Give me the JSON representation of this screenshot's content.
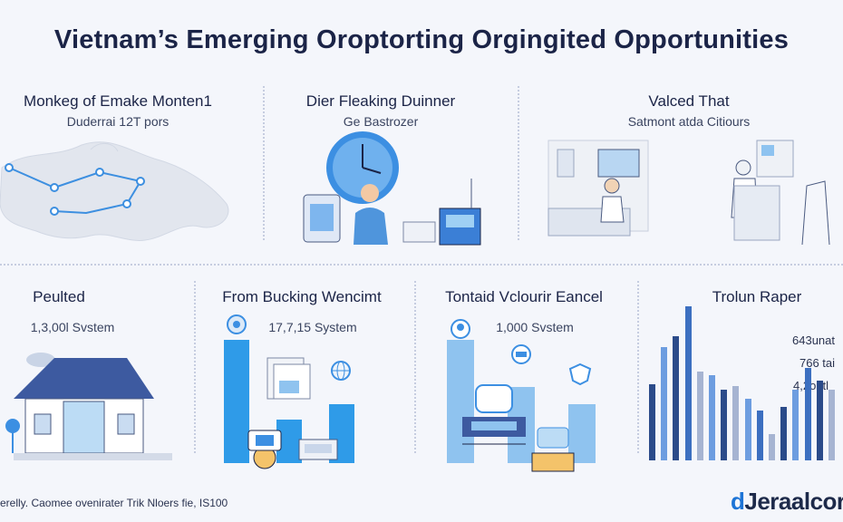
{
  "title": "Vietnam’s Emerging Oroptorting Orgingited Opportunities",
  "panels": {
    "p1": {
      "title": "Monkeg of Emake Monten1",
      "subtitle": "Duderrai 12T pors"
    },
    "p2": {
      "title": "Dier Fleaking Duinner",
      "subtitle": "Ge Bastrozer"
    },
    "p3": {
      "title": "Valced That",
      "subtitle": "Satmont atda Citiours"
    },
    "p4": {
      "title": "Peulted",
      "subtitle": "1,3,00l Svstem"
    },
    "p5": {
      "title": "From Bucking Wencimt",
      "subtitle": "17,7,15 System"
    },
    "p6": {
      "title": "Tontaid Vclourir Eancel",
      "subtitle": "1,000 Svstem"
    },
    "p7": {
      "title": "Trolun Raper",
      "labels": [
        "643unat",
        "766 tai",
        "4,2ontl"
      ]
    }
  },
  "chart5": {
    "values": [
      100,
      35,
      48
    ]
  },
  "chart6": {
    "values": [
      100,
      62,
      48
    ]
  },
  "chart7": {
    "values": [
      43,
      64,
      70,
      87,
      50,
      48,
      40,
      42,
      35,
      28,
      15,
      30,
      40,
      52,
      45,
      40
    ]
  },
  "footer": "erelly. Caomee ovenirater Trik Nloers fie, IS100",
  "logo": {
    "mark": "d",
    "text": "Jeraalcor"
  },
  "colors": {
    "accent": "#2f9be8",
    "dark": "#2b4b8a",
    "light": "#8fc3ef"
  }
}
